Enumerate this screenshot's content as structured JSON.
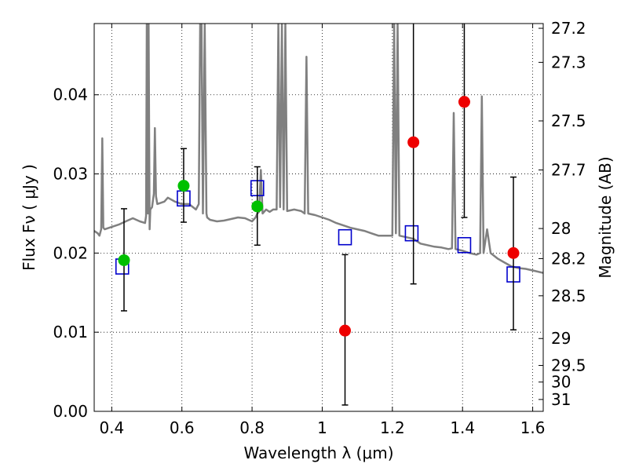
{
  "chart_data": {
    "type": "scatter",
    "xlabel": "Wavelength  λ (μm)",
    "ylabel": "Flux  Fν  ( μJy )",
    "y2label": "Magnitude (AB)",
    "xlim": [
      0.35,
      1.63
    ],
    "ylim": [
      0.0,
      0.049
    ],
    "grid": true,
    "x_ticks": [
      0.4,
      0.6,
      0.8,
      1.0,
      1.2,
      1.4,
      1.6
    ],
    "x_tick_labels": [
      "0.4",
      "0.6",
      "0.8",
      "1",
      "1.2",
      "1.4",
      "1.6"
    ],
    "y_ticks": [
      0.0,
      0.01,
      0.02,
      0.03,
      0.04
    ],
    "y_tick_labels": [
      "0.00",
      "0.01",
      "0.02",
      "0.03",
      "0.04"
    ],
    "y2_ticks": [
      {
        "label": "27.2",
        "flux": 0.0484
      },
      {
        "label": "27.3",
        "flux": 0.0441
      },
      {
        "label": "27.5",
        "flux": 0.0367
      },
      {
        "label": "27.7",
        "flux": 0.0305
      },
      {
        "label": "28",
        "flux": 0.0231
      },
      {
        "label": "28.2",
        "flux": 0.0193
      },
      {
        "label": "28.5",
        "flux": 0.0146
      },
      {
        "label": "29",
        "flux": 0.0092
      },
      {
        "label": "29.5",
        "flux": 0.0058
      },
      {
        "label": "30",
        "flux": 0.0037
      },
      {
        "label": "31",
        "flux": 0.0015
      }
    ],
    "model_spectrum": {
      "color": "#808080",
      "points": [
        [
          0.35,
          0.0228
        ],
        [
          0.36,
          0.0225
        ],
        [
          0.365,
          0.0222
        ],
        [
          0.37,
          0.023
        ],
        [
          0.373,
          0.0345
        ],
        [
          0.376,
          0.0232
        ],
        [
          0.38,
          0.023
        ],
        [
          0.4,
          0.0233
        ],
        [
          0.42,
          0.0236
        ],
        [
          0.44,
          0.024
        ],
        [
          0.46,
          0.0244
        ],
        [
          0.48,
          0.024
        ],
        [
          0.495,
          0.0238
        ],
        [
          0.498,
          0.0247
        ],
        [
          0.5,
          0.049
        ],
        [
          0.503,
          0.025
        ],
        [
          0.505,
          0.049
        ],
        [
          0.508,
          0.023
        ],
        [
          0.51,
          0.0255
        ],
        [
          0.515,
          0.0258
        ],
        [
          0.52,
          0.0275
        ],
        [
          0.523,
          0.0358
        ],
        [
          0.526,
          0.0272
        ],
        [
          0.53,
          0.0262
        ],
        [
          0.55,
          0.0265
        ],
        [
          0.56,
          0.027
        ],
        [
          0.58,
          0.0265
        ],
        [
          0.6,
          0.0262
        ],
        [
          0.62,
          0.0262
        ],
        [
          0.64,
          0.0255
        ],
        [
          0.648,
          0.0262
        ],
        [
          0.652,
          0.049
        ],
        [
          0.656,
          0.049
        ],
        [
          0.66,
          0.025
        ],
        [
          0.665,
          0.049
        ],
        [
          0.67,
          0.025
        ],
        [
          0.672,
          0.0245
        ],
        [
          0.68,
          0.0242
        ],
        [
          0.7,
          0.024
        ],
        [
          0.72,
          0.0241
        ],
        [
          0.74,
          0.0243
        ],
        [
          0.76,
          0.0245
        ],
        [
          0.78,
          0.0244
        ],
        [
          0.8,
          0.024
        ],
        [
          0.81,
          0.0245
        ],
        [
          0.815,
          0.025
        ],
        [
          0.82,
          0.0252
        ],
        [
          0.825,
          0.0305
        ],
        [
          0.83,
          0.025
        ],
        [
          0.84,
          0.0255
        ],
        [
          0.85,
          0.0252
        ],
        [
          0.86,
          0.0255
        ],
        [
          0.87,
          0.0255
        ],
        [
          0.875,
          0.049
        ],
        [
          0.88,
          0.0258
        ],
        [
          0.885,
          0.049
        ],
        [
          0.89,
          0.0255
        ],
        [
          0.895,
          0.049
        ],
        [
          0.9,
          0.0253
        ],
        [
          0.92,
          0.0255
        ],
        [
          0.94,
          0.0253
        ],
        [
          0.95,
          0.025
        ],
        [
          0.955,
          0.0448
        ],
        [
          0.96,
          0.025
        ],
        [
          0.98,
          0.0248
        ],
        [
          1.0,
          0.0245
        ],
        [
          1.02,
          0.0242
        ],
        [
          1.04,
          0.0238
        ],
        [
          1.06,
          0.0235
        ],
        [
          1.08,
          0.0232
        ],
        [
          1.1,
          0.023
        ],
        [
          1.12,
          0.0228
        ],
        [
          1.14,
          0.0225
        ],
        [
          1.16,
          0.0222
        ],
        [
          1.18,
          0.0222
        ],
        [
          1.2,
          0.0222
        ],
        [
          1.205,
          0.049
        ],
        [
          1.21,
          0.0225
        ],
        [
          1.215,
          0.049
        ],
        [
          1.22,
          0.0222
        ],
        [
          1.24,
          0.022
        ],
        [
          1.26,
          0.0218
        ],
        [
          1.28,
          0.0212
        ],
        [
          1.3,
          0.021
        ],
        [
          1.32,
          0.0208
        ],
        [
          1.34,
          0.0207
        ],
        [
          1.36,
          0.0205
        ],
        [
          1.37,
          0.0206
        ],
        [
          1.375,
          0.0377
        ],
        [
          1.38,
          0.0205
        ],
        [
          1.4,
          0.0203
        ],
        [
          1.42,
          0.02
        ],
        [
          1.44,
          0.0198
        ],
        [
          1.45,
          0.02
        ],
        [
          1.455,
          0.0398
        ],
        [
          1.46,
          0.02
        ],
        [
          1.47,
          0.023
        ],
        [
          1.48,
          0.02
        ],
        [
          1.5,
          0.0193
        ],
        [
          1.52,
          0.0188
        ],
        [
          1.54,
          0.0183
        ],
        [
          1.56,
          0.0181
        ],
        [
          1.58,
          0.018
        ],
        [
          1.6,
          0.0178
        ],
        [
          1.63,
          0.0175
        ]
      ]
    },
    "model_photometry": {
      "color": "#0000cc",
      "points": [
        {
          "x": 0.43,
          "y": 0.0183
        },
        {
          "x": 0.605,
          "y": 0.0269
        },
        {
          "x": 0.815,
          "y": 0.0282
        },
        {
          "x": 1.065,
          "y": 0.022
        },
        {
          "x": 1.255,
          "y": 0.0225
        },
        {
          "x": 1.405,
          "y": 0.021
        },
        {
          "x": 1.545,
          "y": 0.0173
        }
      ]
    },
    "detections": {
      "color": "#00c000",
      "points": [
        {
          "x": 0.435,
          "y": 0.0191,
          "err_low": 0.0127,
          "err_high": 0.0256
        },
        {
          "x": 0.605,
          "y": 0.0285,
          "err_low": 0.0239,
          "err_high": 0.0332
        },
        {
          "x": 0.815,
          "y": 0.0259,
          "err_low": 0.021,
          "err_high": 0.0309
        }
      ]
    },
    "non_detections": {
      "color": "#ee0000",
      "points": [
        {
          "x": 1.065,
          "y": 0.0102,
          "err_low": 0.0008,
          "err_high": 0.0198
        },
        {
          "x": 1.26,
          "y": 0.034,
          "err_low": 0.0161,
          "err_high": 0.049
        },
        {
          "x": 1.405,
          "y": 0.0391,
          "err_low": 0.0245,
          "err_high": 0.049
        },
        {
          "x": 1.545,
          "y": 0.02,
          "err_low": 0.0103,
          "err_high": 0.0296
        }
      ]
    }
  }
}
